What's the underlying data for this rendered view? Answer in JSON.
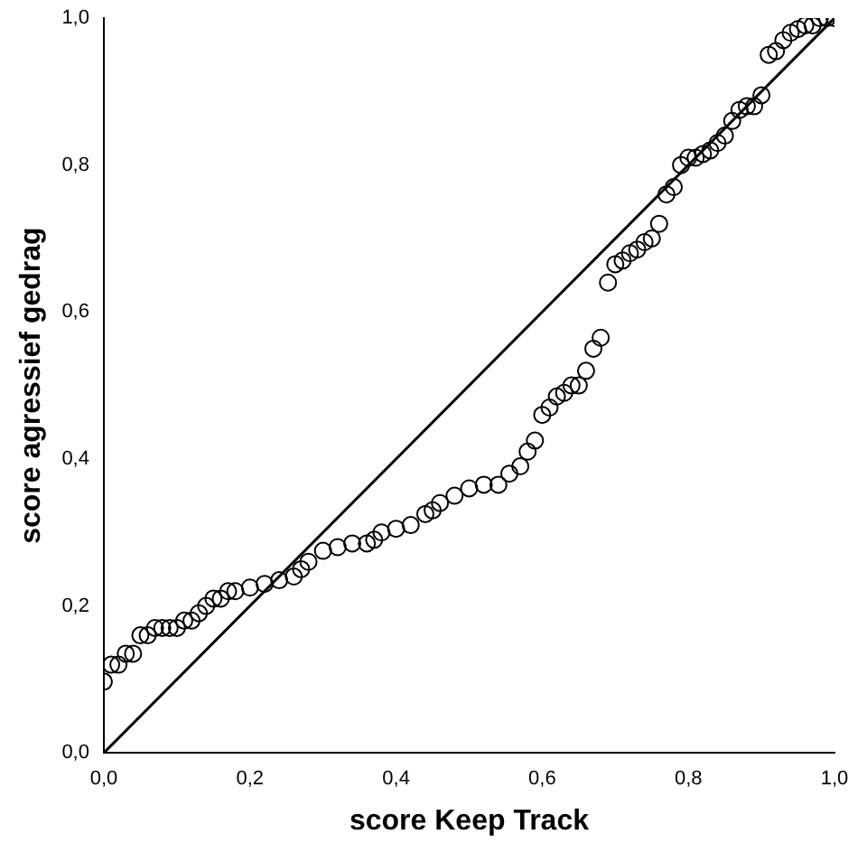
{
  "chart_data": {
    "type": "scatter",
    "xlabel": "score Keep Track",
    "ylabel": "score agressief gedrag",
    "marker": "circle",
    "grid": false,
    "legend": false,
    "xlim": [
      0,
      1
    ],
    "ylim": [
      0,
      1
    ],
    "xticks": [
      {
        "value": 0,
        "label": "0,0"
      },
      {
        "value": 0.2,
        "label": "0,2"
      },
      {
        "value": 0.4,
        "label": "0,4"
      },
      {
        "value": 0.6,
        "label": "0,6"
      },
      {
        "value": 0.8,
        "label": "0,8"
      },
      {
        "value": 1,
        "label": "1,0"
      }
    ],
    "yticks": [
      {
        "value": 0,
        "label": "0,0"
      },
      {
        "value": 0.2,
        "label": "0,2"
      },
      {
        "value": 0.4,
        "label": "0,4"
      },
      {
        "value": 0.6,
        "label": "0,6"
      },
      {
        "value": 0.8,
        "label": "0,8"
      },
      {
        "value": 1,
        "label": "1,0"
      }
    ],
    "series": [
      {
        "color": "#000000",
        "x": [
          0,
          0.01,
          0.02,
          0.03,
          0.04,
          0.05,
          0.06,
          0.07,
          0.08,
          0.09,
          0.1,
          0.11,
          0.12,
          0.13,
          0.14,
          0.15,
          0.16,
          0.17,
          0.18,
          0.2,
          0.22,
          0.24,
          0.26,
          0.27,
          0.28,
          0.3,
          0.32,
          0.34,
          0.36,
          0.37,
          0.38,
          0.4,
          0.42,
          0.44,
          0.45,
          0.46,
          0.48,
          0.5,
          0.52,
          0.54,
          0.555,
          0.57,
          0.58,
          0.59,
          0.6,
          0.61,
          0.62,
          0.63,
          0.64,
          0.65,
          0.66,
          0.67,
          0.68,
          0.69,
          0.7,
          0.71,
          0.72,
          0.73,
          0.74,
          0.75,
          0.76,
          0.77,
          0.78,
          0.79,
          0.8,
          0.81,
          0.82,
          0.83,
          0.84,
          0.85,
          0.86,
          0.87,
          0.88,
          0.89,
          0.9,
          0.91,
          0.92,
          0.93,
          0.94,
          0.95,
          0.96,
          0.97,
          0.98,
          0.99,
          1
        ],
        "values": [
          0.097,
          0.12,
          0.12,
          0.135,
          0.135,
          0.16,
          0.16,
          0.17,
          0.17,
          0.17,
          0.17,
          0.18,
          0.18,
          0.19,
          0.2,
          0.21,
          0.21,
          0.22,
          0.22,
          0.225,
          0.23,
          0.235,
          0.24,
          0.25,
          0.26,
          0.275,
          0.28,
          0.285,
          0.285,
          0.29,
          0.3,
          0.305,
          0.31,
          0.325,
          0.33,
          0.34,
          0.35,
          0.36,
          0.365,
          0.365,
          0.38,
          0.39,
          0.41,
          0.425,
          0.46,
          0.47,
          0.485,
          0.49,
          0.5,
          0.5,
          0.52,
          0.55,
          0.565,
          0.64,
          0.665,
          0.67,
          0.68,
          0.685,
          0.695,
          0.7,
          0.72,
          0.76,
          0.77,
          0.8,
          0.81,
          0.81,
          0.815,
          0.82,
          0.83,
          0.84,
          0.86,
          0.875,
          0.88,
          0.88,
          0.895,
          0.95,
          0.955,
          0.97,
          0.98,
          0.985,
          0.99,
          0.99,
          1,
          1,
          1
        ]
      },
      {
        "type": "line",
        "marker": "none",
        "color": "#000000",
        "x": [
          0,
          1
        ],
        "values": [
          0,
          1
        ]
      }
    ]
  }
}
